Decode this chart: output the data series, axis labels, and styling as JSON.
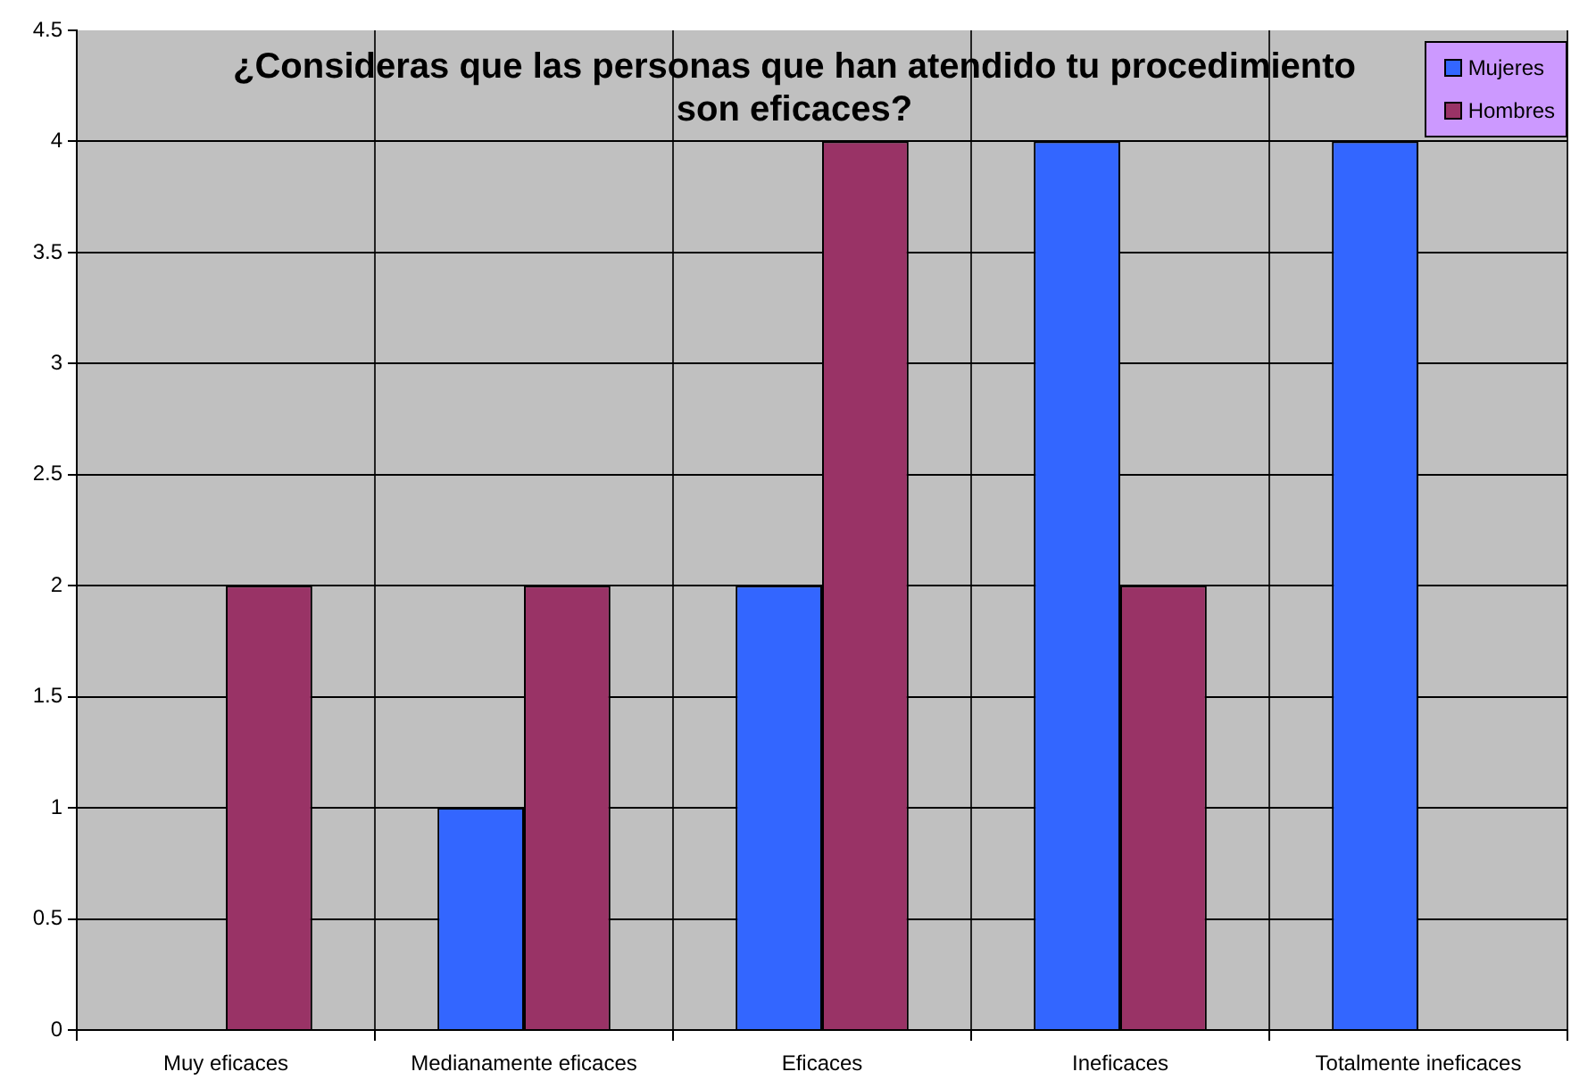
{
  "chart_data": {
    "type": "bar",
    "title": "¿Consideras que las personas que han atendido tu procedimiento son eficaces?",
    "categories": [
      "Muy eficaces",
      "Medianamente eficaces",
      "Eficaces",
      "Ineficaces",
      "Totalmente ineficaces"
    ],
    "series": [
      {
        "name": "Mujeres",
        "color": "#3366ff",
        "values": [
          0,
          1,
          2,
          4,
          4
        ]
      },
      {
        "name": "Hombres",
        "color": "#993366",
        "values": [
          2,
          2,
          4,
          2,
          0
        ]
      }
    ],
    "ylim": [
      0,
      4.5
    ],
    "yticks": [
      0,
      0.5,
      1,
      1.5,
      2,
      2.5,
      3,
      3.5,
      4,
      4.5
    ],
    "grid": true,
    "legend": "top right"
  }
}
